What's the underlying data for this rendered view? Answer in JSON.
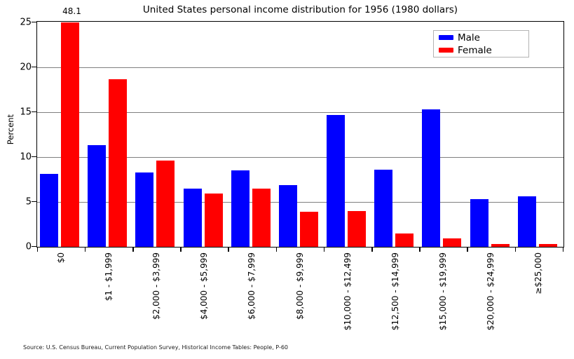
{
  "chart_data": {
    "type": "bar",
    "title": "United States personal income distribution for 1956 (1980 dollars)",
    "xlabel": "",
    "ylabel": "Percent",
    "ylim": [
      0,
      25
    ],
    "yticks": [
      0,
      5,
      10,
      15,
      20,
      25
    ],
    "grid": true,
    "grid_color": "#7f7f7f",
    "legend_position": "upper right",
    "categories": [
      "$0",
      "$1 - $1,999",
      "$2,000 - $3,999",
      "$4,000 - $5,999",
      "$6,000 - $7,999",
      "$8,000 - $9,999",
      "$10,000 - $12,499",
      "$12,500 - $14,999",
      "$15,000 - $19,999",
      "$20,000 - $24,999",
      "≥$25,000"
    ],
    "series": [
      {
        "name": "Male",
        "color": "#0000ff",
        "values": [
          8.1,
          11.3,
          8.3,
          6.5,
          8.5,
          6.9,
          14.7,
          8.6,
          15.3,
          5.3,
          5.6
        ]
      },
      {
        "name": "Female",
        "color": "#ff0000",
        "values": [
          48.1,
          18.7,
          9.6,
          5.9,
          6.5,
          3.9,
          4.0,
          1.5,
          0.9,
          0.3,
          0.3
        ]
      }
    ],
    "annotations": [
      {
        "text": "48.1",
        "category": "$0",
        "series": "Female",
        "note": "bar clipped at y-axis maximum of 25"
      }
    ],
    "source": "Source: U.S. Census Bureau, Current Population Survey, Historical Income Tables: People, P-60"
  }
}
